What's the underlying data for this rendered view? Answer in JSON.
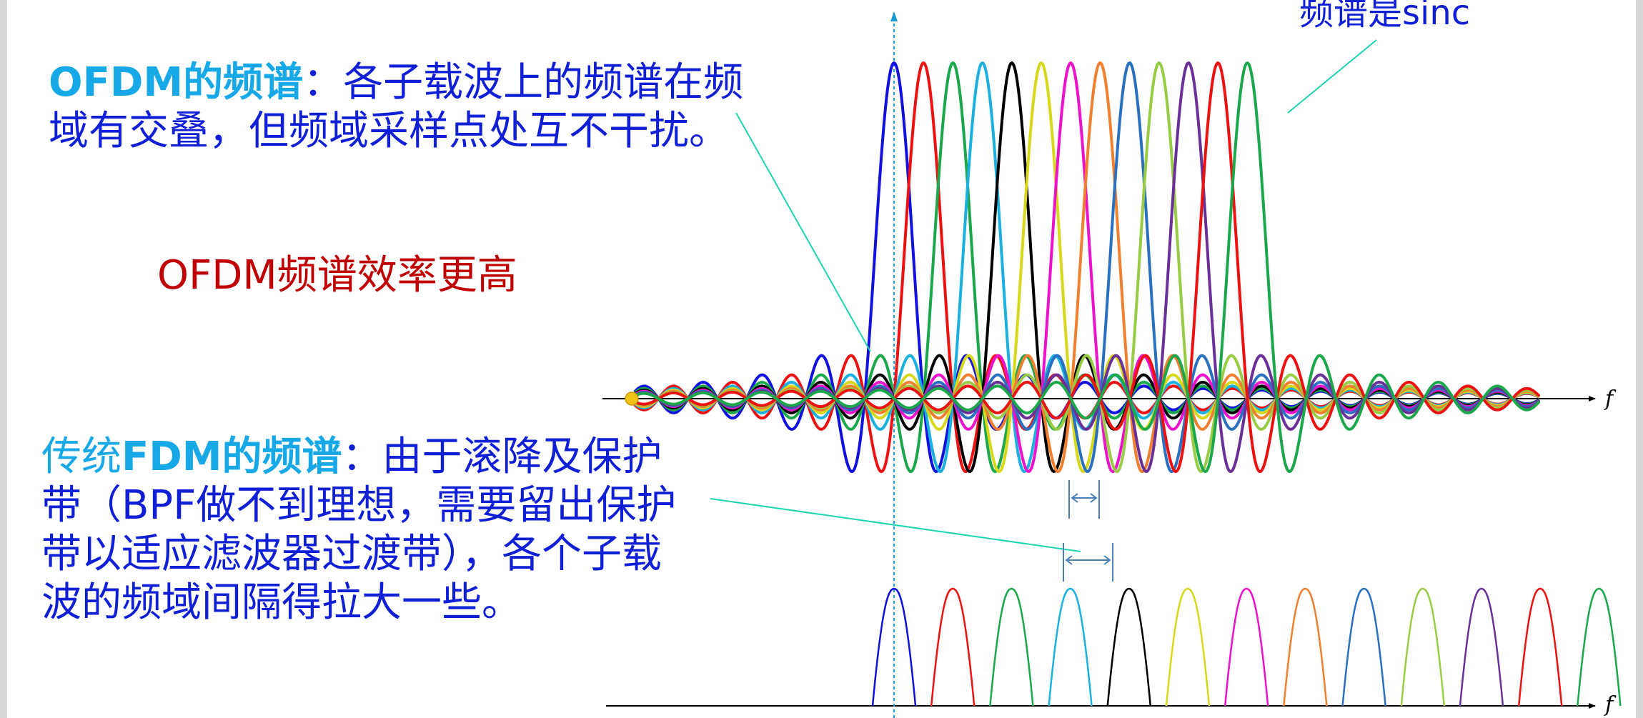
{
  "ofdm_text": {
    "title": "OFDM的频谱",
    "colon": "：",
    "line1_rest": "各子载波上的频谱在频",
    "line2": "域有交叠，但频域采样点处互不干扰。"
  },
  "efficiency_note": "OFDM频谱效率更高",
  "sinc_note": "频谱是sinc",
  "fdm_text": {
    "prefix": "传统",
    "title": "FDM的频谱",
    "colon": "：",
    "line1_rest": "由于滚降及保护",
    "line2_a": "带（",
    "line2_b": "BPF",
    "line2_c": "做不到理想，需要留出保护",
    "line3": "带以适应滤波器过渡带），各个子载",
    "line4": "波的频域间隔得拉大一些。"
  },
  "axis_labels": {
    "ofdm_axis": "f",
    "fdm_axis": "f"
  },
  "colors": {
    "accent_text": "#0e1fd6",
    "highlight_text": "#17a8e8",
    "efficiency_text": "#c00000",
    "pointer_line": "#1ed4b0",
    "bracket": "#4a7fbd",
    "dashed_line": "#1a9ad6",
    "origin_dot": "#f2c318"
  },
  "subcarrier_colors": [
    "#1010e0",
    "#ee1111",
    "#1aa84a",
    "#1ab0e0",
    "#000000",
    "#d8d81a",
    "#ee11cc",
    "#f08030",
    "#2a70c0",
    "#98cc44",
    "#6a3098",
    "#ee1111",
    "#1aa84a"
  ],
  "ofdm_spectrum": {
    "subcarrier_count": 13,
    "shape": "sinc"
  },
  "fdm_spectrum": {
    "subcarrier_count": 13,
    "shape": "band-limited lobe with guard band"
  }
}
